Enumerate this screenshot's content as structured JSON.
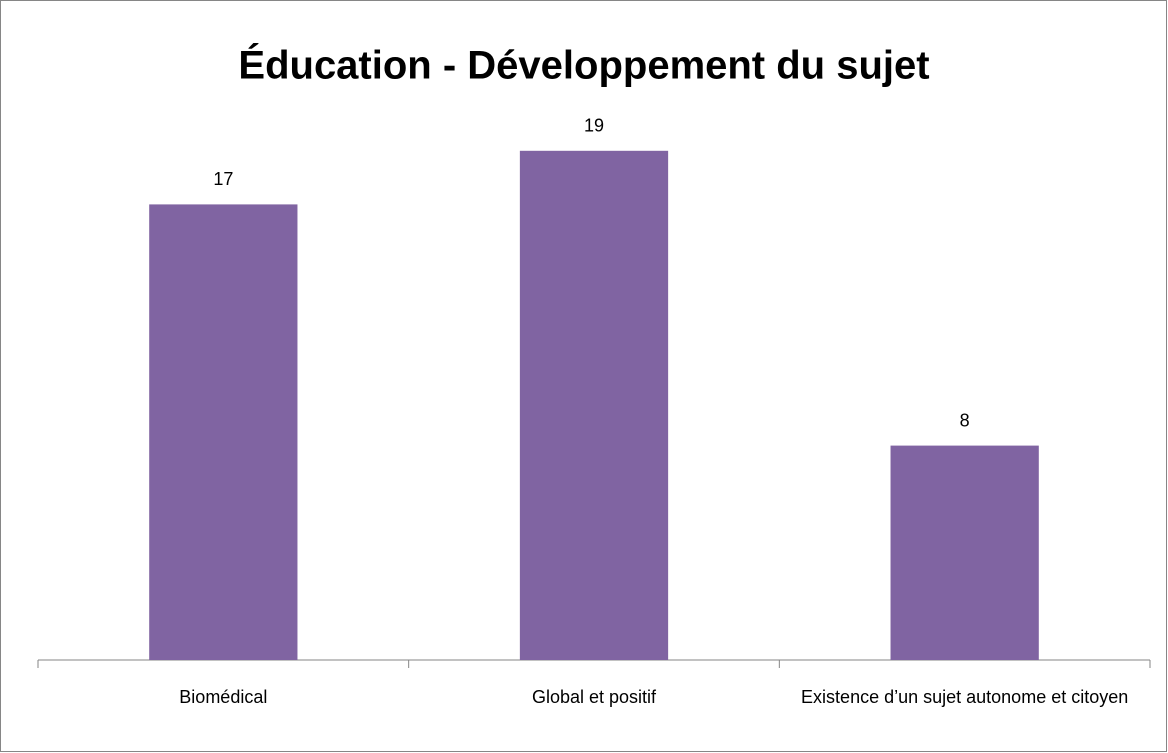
{
  "chart_data": {
    "type": "bar",
    "title": "Éducation - Développement du sujet",
    "categories": [
      "Biomédical",
      "Global et positif",
      "Existence d’un sujet autonome et citoyen"
    ],
    "values": [
      17,
      19,
      8
    ],
    "color": "#8064a2",
    "ylim": [
      0,
      20
    ]
  }
}
